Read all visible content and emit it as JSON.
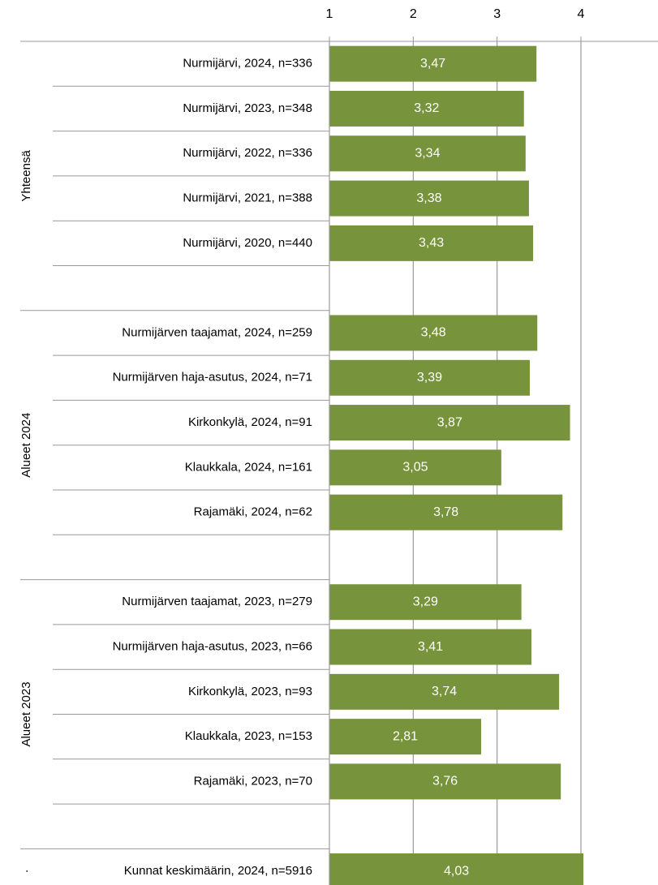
{
  "chart_data": {
    "type": "bar",
    "orientation": "horizontal",
    "color": "#77933c",
    "xlim": [
      1,
      4.9
    ],
    "xticks": [
      1,
      2,
      3,
      4
    ],
    "grid": true,
    "groups": [
      {
        "name": "Yhteensä",
        "categories": [
          "Nurmijärvi, 2024, n=336",
          "Nurmijärvi, 2023, n=348",
          "Nurmijärvi, 2022, n=336",
          "Nurmijärvi, 2021, n=388",
          "Nurmijärvi, 2020, n=440",
          null
        ],
        "values": [
          3.47,
          3.32,
          3.34,
          3.38,
          3.43,
          null
        ],
        "value_labels": [
          "3,47",
          "3,32",
          "3,34",
          "3,38",
          "3,43",
          null
        ]
      },
      {
        "name": "Alueet 2024",
        "categories": [
          "Nurmijärven taajamat, 2024, n=259",
          "Nurmijärven haja-asutus, 2024, n=71",
          "Kirkonkylä, 2024, n=91",
          "Klaukkala, 2024, n=161",
          "Rajamäki, 2024, n=62",
          null
        ],
        "values": [
          3.48,
          3.39,
          3.87,
          3.05,
          3.78,
          null
        ],
        "value_labels": [
          "3,48",
          "3,39",
          "3,87",
          "3,05",
          "3,78",
          null
        ]
      },
      {
        "name": "Alueet 2023",
        "categories": [
          "Nurmijärven taajamat, 2023, n=279",
          "Nurmijärven haja-asutus, 2023, n=66",
          "Kirkonkylä, 2023, n=93",
          "Klaukkala, 2023, n=153",
          "Rajamäki, 2023, n=70",
          null
        ],
        "values": [
          3.29,
          3.41,
          3.74,
          2.81,
          3.76,
          null
        ],
        "value_labels": [
          "3,29",
          "3,41",
          "3,74",
          "2,81",
          "3,76",
          null
        ]
      },
      {
        "name": "·",
        "categories": [
          "Kunnat keskimäärin, 2024, n=5916"
        ],
        "values": [
          4.03
        ],
        "value_labels": [
          "4,03"
        ]
      }
    ]
  }
}
